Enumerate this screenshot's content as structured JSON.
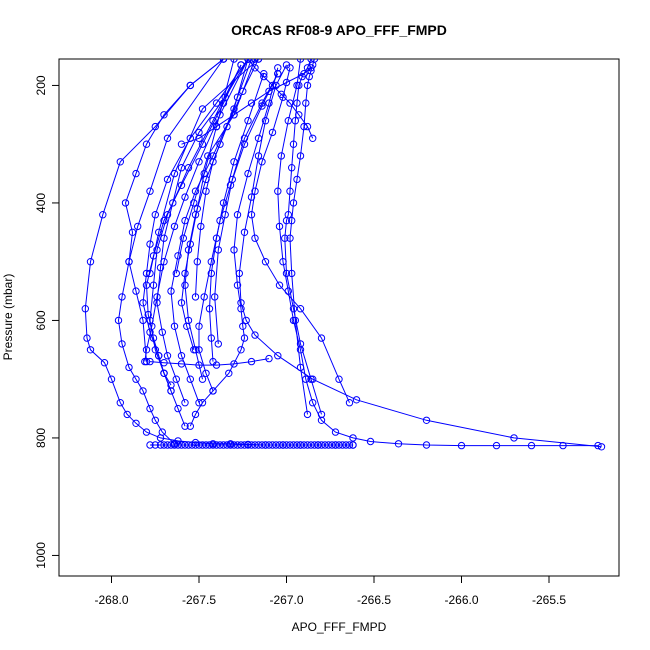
{
  "chart_data": {
    "type": "line",
    "title": "ORCAS RF08-9 APO_FFF_FMPD",
    "xlabel": "APO_FFF_FMPD",
    "ylabel": "Pressure (mbar)",
    "xlim": [
      -268.3,
      -265.1
    ],
    "ylim": [
      1035,
      155
    ],
    "y_reversed": true,
    "x_ticks": [
      -268.0,
      -267.5,
      -267.0,
      -266.5,
      -266.0,
      -265.5
    ],
    "x_tick_labels": [
      "-268.0",
      "-267.5",
      "-267.0",
      "-266.5",
      "-266.0",
      "-265.5"
    ],
    "y_ticks": [
      200,
      400,
      600,
      800,
      1000
    ],
    "y_tick_labels": [
      "200",
      "400",
      "600",
      "800",
      "1000"
    ],
    "grid": false,
    "legend": "none",
    "marker": "open-circle",
    "color": "#0000ff",
    "series": [
      {
        "x": [
          -267.36,
          -267.55,
          -267.7,
          -267.8,
          -267.86,
          -267.92,
          -267.88,
          -267.9,
          -267.86,
          -267.82,
          -267.8
        ],
        "y": [
          155,
          200,
          250,
          300,
          350,
          400,
          450,
          500,
          550,
          600,
          670
        ]
      },
      {
        "x": [
          -267.36,
          -267.55,
          -267.75,
          -267.95,
          -268.05,
          -268.12,
          -268.15,
          -268.14,
          -268.12,
          -268.04,
          -268.0,
          -267.95,
          -267.91,
          -267.86,
          -267.8,
          -267.72,
          -267.62,
          -267.52,
          -267.42,
          -267.32,
          -267.22,
          -267.12,
          -267.02,
          -266.92,
          -266.82,
          -266.72,
          -266.62
        ],
        "y": [
          155,
          200,
          270,
          330,
          420,
          500,
          580,
          630,
          650,
          672,
          700,
          740,
          760,
          775,
          790,
          800,
          805,
          808,
          810,
          810,
          811,
          812,
          812,
          812,
          812,
          812,
          812
        ]
      },
      {
        "x": [
          -267.36,
          -267.68,
          -267.78,
          -267.85,
          -267.9,
          -267.94,
          -267.96,
          -267.94,
          -267.9,
          -267.86,
          -267.82,
          -267.78,
          -267.75,
          -267.71,
          -267.64
        ],
        "y": [
          155,
          290,
          380,
          440,
          500,
          560,
          600,
          640,
          680,
          700,
          720,
          750,
          770,
          790,
          810
        ]
      },
      {
        "x": [
          -267.22,
          -267.4,
          -267.55,
          -267.68,
          -267.75,
          -267.78,
          -267.8,
          -267.82,
          -267.78,
          -267.73,
          -267.7,
          -267.66,
          -267.62,
          -267.58
        ],
        "y": [
          155,
          230,
          290,
          360,
          420,
          470,
          520,
          570,
          620,
          660,
          690,
          720,
          750,
          780
        ]
      },
      {
        "x": [
          -267.22,
          -267.35,
          -267.5,
          -267.6,
          -267.65,
          -267.7,
          -267.72,
          -267.74,
          -267.71,
          -267.68,
          -267.63,
          -267.58
        ],
        "y": [
          155,
          220,
          280,
          340,
          400,
          460,
          510,
          570,
          620,
          660,
          700,
          740
        ]
      },
      {
        "x": [
          -267.22,
          -267.3,
          -267.42,
          -267.52,
          -267.58,
          -267.62,
          -267.66,
          -267.64,
          -267.6,
          -267.55,
          -267.5
        ],
        "y": [
          155,
          240,
          320,
          380,
          430,
          490,
          550,
          610,
          660,
          700,
          740
        ]
      },
      {
        "x": [
          -267.2,
          -267.28,
          -267.38,
          -267.46,
          -267.52,
          -267.56,
          -267.58,
          -267.56,
          -267.52,
          -267.48
        ],
        "y": [
          155,
          220,
          300,
          360,
          420,
          480,
          540,
          600,
          650,
          700
        ]
      },
      {
        "x": [
          -267.18,
          -267.3,
          -267.45,
          -267.53,
          -267.59,
          -267.63
        ],
        "y": [
          155,
          250,
          320,
          400,
          460,
          520
        ]
      },
      {
        "x": [
          -267.16,
          -267.25,
          -267.34,
          -267.42,
          -267.46,
          -267.49,
          -267.51,
          -267.52
        ],
        "y": [
          155,
          210,
          270,
          330,
          380,
          440,
          500,
          560
        ]
      },
      {
        "x": [
          -267.26,
          -267.42,
          -267.56,
          -267.68,
          -267.74,
          -267.76,
          -267.78,
          -267.75,
          -267.7,
          -267.66
        ],
        "y": [
          165,
          260,
          340,
          420,
          480,
          540,
          600,
          650,
          690,
          720
        ]
      },
      {
        "x": [
          -267.26,
          -267.36,
          -267.48,
          -267.6,
          -267.7,
          -267.76,
          -267.8,
          -267.79,
          -267.76,
          -267.73,
          -267.7,
          -267.66
        ],
        "y": [
          165,
          230,
          300,
          370,
          430,
          490,
          540,
          590,
          630,
          660,
          690,
          710
        ]
      },
      {
        "x": [
          -267.3,
          -267.4,
          -267.47,
          -267.51,
          -267.55,
          -267.58,
          -267.6,
          -267.57,
          -267.53
        ],
        "y": [
          155,
          270,
          350,
          410,
          470,
          520,
          570,
          610,
          650
        ]
      },
      {
        "x": [
          -267.22,
          -267.38,
          -267.5,
          -267.58,
          -267.64,
          -267.7,
          -267.74,
          -267.77,
          -267.8,
          -267.81
        ],
        "y": [
          155,
          250,
          330,
          390,
          440,
          500,
          560,
          610,
          650,
          670
        ]
      },
      {
        "x": [
          -267.16,
          -267.48,
          -267.64,
          -267.73,
          -267.78
        ],
        "y": [
          155,
          240,
          350,
          450,
          520
        ]
      },
      {
        "x": [
          -267.13,
          -267.22,
          -267.3,
          -267.36,
          -267.4,
          -267.43,
          -267.44,
          -267.43,
          -267.42
        ],
        "y": [
          180,
          260,
          330,
          400,
          460,
          520,
          580,
          630,
          670
        ]
      },
      {
        "x": [
          -267.05,
          -267.14,
          -267.24,
          -267.31,
          -267.35,
          -267.39,
          -267.41,
          -267.39
        ],
        "y": [
          180,
          230,
          290,
          360,
          420,
          480,
          560,
          640
        ]
      },
      {
        "x": [
          -267.05,
          -267.14,
          -267.24,
          -267.32,
          -267.38,
          -267.43,
          -267.47,
          -267.5,
          -267.5,
          -267.46,
          -267.42
        ],
        "y": [
          180,
          235,
          300,
          370,
          430,
          500,
          560,
          610,
          650,
          690,
          720
        ]
      },
      {
        "x": [
          -267.05,
          -267.1,
          -267.16,
          -267.22,
          -267.28,
          -267.3,
          -267.28,
          -267.26,
          -267.25,
          -267.24,
          -267.26,
          -267.33,
          -267.42,
          -267.48,
          -267.52,
          -267.55
        ],
        "y": [
          170,
          230,
          290,
          350,
          420,
          480,
          540,
          580,
          610,
          630,
          650,
          690,
          720,
          740,
          760,
          780
        ]
      },
      {
        "x": [
          -267.0,
          -267.06,
          -267.12,
          -267.16,
          -267.2,
          -267.24,
          -267.27,
          -267.26,
          -267.23,
          -267.18,
          -267.05,
          -266.85,
          -266.6,
          -266.2,
          -265.7,
          -265.2
        ],
        "y": [
          165,
          200,
          260,
          320,
          390,
          450,
          520,
          570,
          600,
          625,
          660,
          700,
          735,
          770,
          800,
          815
        ]
      },
      {
        "x": [
          -266.98,
          -267.02,
          -267.08,
          -267.14,
          -267.18,
          -267.2,
          -267.18,
          -267.12,
          -267.04,
          -266.92,
          -266.8,
          -266.7,
          -266.64
        ],
        "y": [
          170,
          220,
          280,
          330,
          380,
          420,
          460,
          500,
          540,
          580,
          630,
          700,
          740
        ]
      },
      {
        "x": [
          -266.92,
          -266.94,
          -266.99,
          -267.03,
          -267.05,
          -267.04,
          -267.02,
          -266.99,
          -266.96,
          -266.92,
          -266.89,
          -266.85,
          -266.8,
          -266.72,
          -266.62,
          -266.52,
          -266.36,
          -266.2,
          -266.0,
          -265.8,
          -265.6,
          -265.42,
          -265.22
        ],
        "y": [
          155,
          200,
          260,
          320,
          380,
          440,
          500,
          550,
          600,
          650,
          700,
          740,
          770,
          790,
          800,
          806,
          810,
          812,
          813,
          813,
          813,
          813,
          813
        ]
      },
      {
        "x": [
          -266.86,
          -266.88,
          -266.91,
          -266.93,
          -266.94,
          -266.95,
          -266.96,
          -266.97,
          -266.98,
          -266.99,
          -267.0,
          -267.01,
          -267.0,
          -266.96,
          -266.92,
          -266.86,
          -266.8
        ],
        "y": [
          155,
          170,
          185,
          200,
          230,
          260,
          300,
          340,
          380,
          420,
          430,
          460,
          520,
          580,
          640,
          700,
          760
        ]
      },
      {
        "x": [
          -266.84,
          -266.85,
          -266.86,
          -266.87,
          -266.88,
          -266.89,
          -266.9,
          -266.92,
          -266.94,
          -266.96,
          -266.97,
          -266.98,
          -266.97,
          -266.95,
          -266.92,
          -266.88
        ],
        "y": [
          155,
          165,
          175,
          185,
          200,
          230,
          270,
          320,
          360,
          400,
          430,
          460,
          520,
          600,
          680,
          760
        ]
      },
      {
        "x": [
          -267.22,
          -267.18,
          -267.13,
          -267.08,
          -267.03,
          -266.98,
          -266.93,
          -266.88,
          -266.85
        ],
        "y": [
          155,
          170,
          185,
          200,
          215,
          230,
          250,
          270,
          290
        ]
      },
      {
        "x": [
          -267.6,
          -267.5,
          -267.4,
          -267.3,
          -267.2,
          -267.1,
          -267.0,
          -266.9,
          -266.86
        ],
        "y": [
          300,
          290,
          270,
          250,
          230,
          210,
          195,
          180,
          170
        ]
      },
      {
        "x": [
          -267.78,
          -267.7,
          -267.6,
          -267.5,
          -267.4,
          -267.3,
          -267.2,
          -267.1
        ],
        "y": [
          670,
          672,
          674,
          676,
          676,
          674,
          670,
          665
        ]
      },
      {
        "x": [
          -267.78,
          -267.75,
          -267.72,
          -267.7,
          -267.68,
          -267.66,
          -267.64,
          -267.62,
          -267.6,
          -267.58,
          -267.56,
          -267.54,
          -267.52,
          -267.5,
          -267.48,
          -267.46,
          -267.44,
          -267.42,
          -267.4,
          -267.38,
          -267.36,
          -267.34,
          -267.32,
          -267.3,
          -267.28,
          -267.26,
          -267.24,
          -267.22,
          -267.2,
          -267.18,
          -267.16,
          -267.14,
          -267.12,
          -267.1,
          -267.08,
          -267.06,
          -267.04,
          -267.02,
          -267.0,
          -266.98,
          -266.96,
          -266.94,
          -266.92,
          -266.9,
          -266.88,
          -266.86,
          -266.84,
          -266.82,
          -266.8,
          -266.78,
          -266.76,
          -266.74,
          -266.72,
          -266.7,
          -266.68,
          -266.66,
          -266.64,
          -266.62
        ],
        "y": [
          812,
          812,
          812,
          812,
          812,
          812,
          812,
          812,
          812,
          812,
          812,
          812,
          812,
          812,
          812,
          812,
          812,
          812,
          812,
          812,
          812,
          812,
          812,
          812,
          812,
          812,
          812,
          812,
          812,
          812,
          812,
          812,
          812,
          812,
          812,
          812,
          812,
          812,
          812,
          812,
          812,
          812,
          812,
          812,
          812,
          812,
          812,
          812,
          812,
          812,
          812,
          812,
          812,
          812,
          812,
          812,
          812,
          812
        ]
      }
    ]
  }
}
